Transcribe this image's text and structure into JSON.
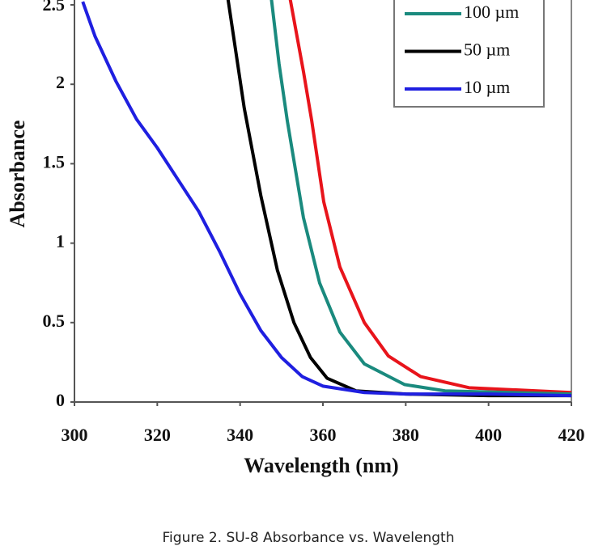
{
  "chart_data": {
    "type": "line",
    "caption": "Figure 2. SU-8 Absorbance vs. Wavelength",
    "xlabel": "Wavelength (nm)",
    "ylabel": "Absorbance",
    "xlim": [
      300,
      420
    ],
    "xticks": [
      300,
      320,
      340,
      360,
      380,
      400,
      420
    ],
    "ylim": [
      0,
      2.5
    ],
    "yticks": [
      0,
      0.5,
      1,
      1.5,
      2,
      2.5
    ],
    "series": [
      {
        "color": "#e8141b",
        "x": [
          352,
          355.3,
          357.3,
          360.2,
          364.1,
          370,
          375.8,
          383.6,
          395.3,
          420
        ],
        "values": [
          2.55,
          2.08,
          1.77,
          1.26,
          0.85,
          0.5,
          0.29,
          0.16,
          0.09,
          0.06
        ]
      },
      {
        "name": "100 µm",
        "color": "#1a8a7e",
        "x": [
          347.5,
          349.4,
          351.4,
          355.3,
          359.2,
          364.1,
          370,
          379.7,
          389.5,
          420
        ],
        "values": [
          2.55,
          2.13,
          1.77,
          1.16,
          0.75,
          0.44,
          0.24,
          0.11,
          0.07,
          0.05
        ]
      },
      {
        "name": "50 µm",
        "color": "#000000",
        "x": [
          337,
          339,
          341,
          345,
          349,
          353,
          357,
          361,
          368,
          380,
          400,
          420
        ],
        "values": [
          2.55,
          2.2,
          1.85,
          1.3,
          0.83,
          0.5,
          0.28,
          0.15,
          0.07,
          0.05,
          0.04,
          0.04
        ]
      },
      {
        "name": "10 µm",
        "color": "#1f1fe0",
        "x": [
          302,
          305,
          310,
          315,
          320,
          325,
          330,
          335,
          340,
          345,
          350,
          355,
          360,
          370,
          380,
          400,
          420
        ],
        "values": [
          2.52,
          2.3,
          2.02,
          1.78,
          1.6,
          1.4,
          1.2,
          0.95,
          0.68,
          0.45,
          0.28,
          0.16,
          0.1,
          0.06,
          0.05,
          0.05,
          0.04
        ]
      }
    ]
  }
}
